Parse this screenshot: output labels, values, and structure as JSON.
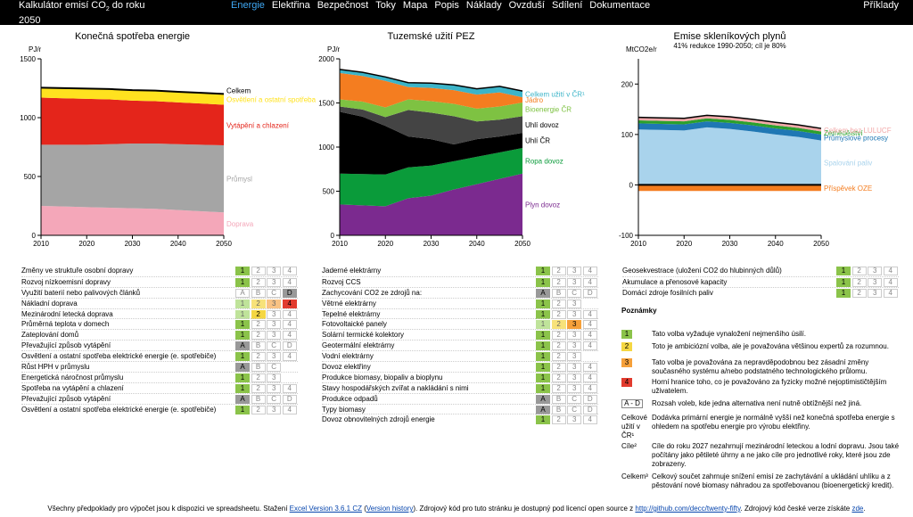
{
  "header": {
    "title_main": "Kalkulátor emisí CO",
    "title_sub": "2",
    "title_tail": " do roku 2050",
    "nav": [
      {
        "label": "Energie",
        "active": true
      },
      {
        "label": "Elektřina",
        "active": false
      },
      {
        "label": "Bezpečnost",
        "active": false
      },
      {
        "label": "Toky",
        "active": false
      },
      {
        "label": "Mapa",
        "active": false
      },
      {
        "label": "Popis",
        "active": false
      },
      {
        "label": "Náklady",
        "active": false
      },
      {
        "label": "Ovzduší",
        "active": false
      },
      {
        "label": "Sdílení",
        "active": false
      },
      {
        "label": "Dokumentace",
        "active": false
      }
    ],
    "examples": "Příklady"
  },
  "chart_data": [
    {
      "type": "area",
      "title": "Konečná spotřeba energie",
      "ylabel": "PJ/r",
      "x": [
        2010,
        2015,
        2020,
        2025,
        2030,
        2035,
        2040,
        2045,
        2050
      ],
      "ylim": [
        0,
        1500
      ],
      "yticks": [
        0,
        500,
        1000,
        1500
      ],
      "xticks": [
        2010,
        2020,
        2030,
        2040,
        2050
      ],
      "series": [
        {
          "name": "Doprava",
          "color": "#f4a7b9",
          "values": [
            250,
            245,
            240,
            235,
            230,
            225,
            215,
            205,
            195
          ]
        },
        {
          "name": "Průmysl",
          "color": "#a5a5a5",
          "values": [
            520,
            525,
            530,
            540,
            550,
            555,
            560,
            565,
            570
          ]
        },
        {
          "name": "Vytápění a chlazení",
          "color": "#e4251b",
          "values": [
            400,
            395,
            390,
            380,
            365,
            360,
            355,
            350,
            345
          ]
        },
        {
          "name": "Osvětlení a ostatní spotřeba",
          "color": "#ffe21f",
          "values": [
            85,
            86,
            87,
            88,
            89,
            90,
            90,
            91,
            92
          ]
        }
      ],
      "total": {
        "name": "Celkem",
        "values": [
          1255,
          1251,
          1247,
          1243,
          1234,
          1230,
          1220,
          1211,
          1202
        ]
      }
    },
    {
      "type": "area",
      "title": "Tuzemské užití PEZ",
      "ylabel": "PJ/r",
      "x": [
        2010,
        2015,
        2020,
        2025,
        2030,
        2035,
        2040,
        2045,
        2050
      ],
      "ylim": [
        0,
        2000
      ],
      "yticks": [
        0,
        500,
        1000,
        1500,
        2000
      ],
      "xticks": [
        2010,
        2020,
        2030,
        2040,
        2050
      ],
      "series": [
        {
          "name": "Plyn dovoz",
          "color": "#7b2a8f",
          "values": [
            350,
            340,
            330,
            420,
            450,
            520,
            580,
            640,
            700
          ]
        },
        {
          "name": "Ropa dovoz",
          "color": "#0a9b3a",
          "values": [
            350,
            355,
            360,
            350,
            340,
            320,
            310,
            300,
            290
          ]
        },
        {
          "name": "Uhlí ČR",
          "color": "#000000",
          "values": [
            700,
            650,
            550,
            350,
            300,
            190,
            200,
            180,
            170
          ]
        },
        {
          "name": "Uhlí dovoz",
          "color": "#444444",
          "values": [
            60,
            80,
            100,
            300,
            300,
            320,
            200,
            190,
            190
          ]
        },
        {
          "name": "Bioenergie ČR",
          "color": "#7ec242",
          "values": [
            80,
            90,
            110,
            120,
            130,
            140,
            145,
            150,
            155
          ]
        },
        {
          "name": "Jádro",
          "color": "#f47d20",
          "values": [
            300,
            290,
            300,
            140,
            150,
            155,
            160,
            160,
            60
          ]
        },
        {
          "name": "Celkem užití v ČR¹",
          "color": "#3cb4c8",
          "values": [
            40,
            42,
            45,
            50,
            55,
            60,
            65,
            68,
            70
          ]
        }
      ]
    },
    {
      "type": "area",
      "title": "Emise skleníkových plynů",
      "subtitle": "41% redukce 1990-2050; cíl je 80%",
      "ylabel": "MtCO2e/r",
      "x": [
        2010,
        2015,
        2020,
        2025,
        2030,
        2035,
        2040,
        2045,
        2050
      ],
      "ylim": [
        -100,
        250
      ],
      "yticks": [
        -100,
        0,
        100,
        200
      ],
      "xticks": [
        2010,
        2020,
        2030,
        2040,
        2050
      ],
      "series": [
        {
          "name": "Spalování paliv",
          "color": "#a9d3ec",
          "values": [
            110,
            109,
            108,
            114,
            111,
            106,
            100,
            95,
            88
          ]
        },
        {
          "name": "Průmyslové procesy",
          "color": "#1f77b4",
          "values": [
            12,
            12,
            12,
            12,
            12,
            12,
            12,
            12,
            12
          ]
        },
        {
          "name": "Zemědělství",
          "color": "#2ca02c",
          "values": [
            6,
            6,
            6,
            6,
            6,
            6,
            6,
            6,
            6
          ]
        },
        {
          "name": "Celkem bez LULUCF",
          "color": "#f2a8a8",
          "values": [
            6,
            6,
            6,
            6,
            6,
            6,
            6,
            6,
            6
          ]
        },
        {
          "name": "Příspěvek OZE",
          "color": "#f47d20",
          "values": [
            -12,
            -12,
            -12,
            -12,
            -12,
            -12,
            -12,
            -12,
            -12
          ]
        }
      ]
    }
  ],
  "lever_columns": [
    [
      {
        "name": "Změny ve struktuře osobní dopravy",
        "cells": [
          "1",
          "2",
          "3",
          "4"
        ],
        "sel": 1
      },
      {
        "name": "Rozvoj nízkoemisní dopravy",
        "cells": [
          "1",
          "2",
          "3",
          "4"
        ],
        "sel": 1
      },
      {
        "name": "Využití baterií nebo palivových článků",
        "cells": [
          "A",
          "B",
          "C",
          "D"
        ],
        "sel": 4,
        "letters": true
      },
      {
        "name": "Nákladní doprava",
        "cells": [
          "1",
          "2",
          "3",
          "4"
        ],
        "sel": 4
      },
      {
        "name": "Mezinárodní letecká doprava",
        "cells": [
          "1",
          "2",
          "3",
          "4"
        ],
        "sel": 2
      },
      {
        "name": "Průměrná teplota v domech",
        "cells": [
          "1",
          "2",
          "3",
          "4"
        ],
        "sel": 1
      },
      {
        "name": "Zateplování domů",
        "cells": [
          "1",
          "2",
          "3",
          "4"
        ],
        "sel": 1
      },
      {
        "name": "Převažující způsob vytápění",
        "cells": [
          "A",
          "B",
          "C",
          "D"
        ],
        "sel": 1,
        "letters": true
      },
      {
        "name": "Osvětlení a ostatní spotřeba elektrické energie (e. spotřebiče)",
        "cells": [
          "1",
          "2",
          "3",
          "4"
        ],
        "sel": 1
      },
      {
        "name": "Růst HPH v průmyslu",
        "cells": [
          "A",
          "B",
          "C"
        ],
        "sel": 1,
        "letters": true
      },
      {
        "name": "Energetická náročnost průmyslu",
        "cells": [
          "1",
          "2",
          "3"
        ],
        "sel": 1
      },
      {
        "name": "Spotřeba na vytápění a chlazení",
        "cells": [
          "1",
          "2",
          "3",
          "4"
        ],
        "sel": 1
      },
      {
        "name": "Převažující způsob vytápění",
        "cells": [
          "A",
          "B",
          "C",
          "D"
        ],
        "sel": 1,
        "letters": true
      },
      {
        "name": "Osvětlení a ostatní spotřeba elektrické energie (e. spotřebiče)",
        "cells": [
          "1",
          "2",
          "3",
          "4"
        ],
        "sel": 1
      }
    ],
    [
      {
        "name": "Jaderné elektrárny",
        "cells": [
          "1",
          "2",
          "3",
          "4"
        ],
        "sel": 1
      },
      {
        "name": "Rozvoj CCS",
        "cells": [
          "1",
          "2",
          "3",
          "4"
        ],
        "sel": 1
      },
      {
        "name": "Zachycování CO2 ze zdrojů na:",
        "cells": [
          "A",
          "B",
          "C",
          "D"
        ],
        "sel": 1,
        "letters": true
      },
      {
        "name": "Větrné elektrárny",
        "cells": [
          "1",
          "2",
          "3"
        ],
        "sel": 1
      },
      {
        "name": "Tepelné elektrárny",
        "cells": [
          "1",
          "2",
          "3",
          "4"
        ],
        "sel": 1
      },
      {
        "name": "Fotovoltaické panely",
        "cells": [
          "1",
          "2",
          "3",
          "4"
        ],
        "sel": 3
      },
      {
        "name": "Solární termické kolektory",
        "cells": [
          "1",
          "2",
          "3",
          "4"
        ],
        "sel": 1
      },
      {
        "name": "Geotermální elektrárny",
        "cells": [
          "1",
          "2",
          "3",
          "4"
        ],
        "sel": 1
      },
      {
        "name": "Vodní elektrárny",
        "cells": [
          "1",
          "2",
          "3"
        ],
        "sel": 1
      },
      {
        "name": "Dovoz elektřiny",
        "cells": [
          "1",
          "2",
          "3",
          "4"
        ],
        "sel": 1
      },
      {
        "name": "Produkce biomasy, biopaliv a bioplynu",
        "cells": [
          "1",
          "2",
          "3",
          "4"
        ],
        "sel": 1
      },
      {
        "name": "Stavy hospodářských zvířat a nakládání s nimi",
        "cells": [
          "1",
          "2",
          "3",
          "4"
        ],
        "sel": 1
      },
      {
        "name": "Produkce odpadů",
        "cells": [
          "A",
          "B",
          "C",
          "D"
        ],
        "sel": 1,
        "letters": true
      },
      {
        "name": "Typy biomasy",
        "cells": [
          "A",
          "B",
          "C",
          "D"
        ],
        "sel": 1,
        "letters": true
      },
      {
        "name": "Dovoz obnovitelných zdrojů energie",
        "cells": [
          "1",
          "2",
          "3",
          "4"
        ],
        "sel": 1
      }
    ],
    [
      {
        "name": "Geosekvestrace (uložení CO2 do hlubinných důlů)",
        "cells": [
          "1",
          "2",
          "3",
          "4"
        ],
        "sel": 1
      },
      {
        "name": "Akumulace a přenosové kapacity",
        "cells": [
          "1",
          "2",
          "3",
          "4"
        ],
        "sel": 1
      },
      {
        "name": "Domácí zdroje fosilních paliv",
        "cells": [
          "1",
          "2",
          "3",
          "4"
        ],
        "sel": 1
      }
    ]
  ],
  "notes": {
    "title": "Poznámky",
    "items": [
      {
        "key": "1",
        "text": "Tato volba vyžaduje vynaložení nejmenšího úsilí.",
        "color": "#8bc34a"
      },
      {
        "key": "2",
        "text": "Toto je ambiciózní volba, ale je považována většinou expertů za rozumnou.",
        "color": "#f5d742"
      },
      {
        "key": "3",
        "text": "Tato volba je považována za nepravděpodobnou bez zásadní změny současného systému a/nebo podstatného technologického průlomu.",
        "color": "#f6a03a"
      },
      {
        "key": "4",
        "text": "Horní hranice toho, co je považováno za fyzicky možné nejoptimističtějším uživatelem.",
        "color": "#e23b2e"
      },
      {
        "key": "A - D",
        "text": "Rozsah voleb, kde jedna alternativa není nutně obtížnější než jiná."
      },
      {
        "key": "Celkové užití v ČR¹",
        "text": "Dodávka primární energie je normálně vyšší než konečná spotřeba energie s ohledem na spotřebu energie pro výrobu elektřiny."
      },
      {
        "key": "Cíle²",
        "text": "Cíle do roku 2027 nezahrnují mezinárodní leteckou a lodní dopravu. Jsou také počítány jako pětileté úhrny a ne jako cíle pro jednotlivé roky, které jsou zde zobrazeny."
      },
      {
        "key": "Celkem³",
        "text": "Celkový součet zahrnuje snížení emisí ze zachytávání a ukládání uhlíku a z pěstování nové biomasy náhradou za spotřebovanou (bioenergetický kredit)."
      }
    ]
  },
  "footer": {
    "pre": "Všechny předpoklady pro výpočet jsou k dispozici ve spreadsheetu. Stažení ",
    "link1": "Excel Version 3.6.1 CZ",
    "mid1": " (",
    "link2": "Version history",
    "mid2": "). Zdrojový kód pro tuto stránku je dostupný pod licencí open source z ",
    "link3": "http://github.com/decc/twenty-fifty",
    "mid3": ". Zdrojový kód české verze získáte ",
    "link4": "zde",
    "post": "."
  }
}
